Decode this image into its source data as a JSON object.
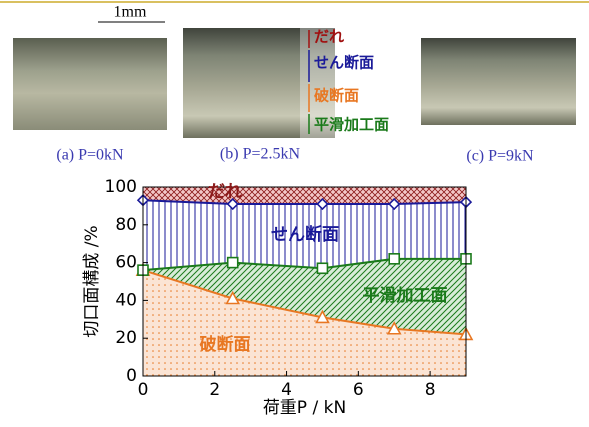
{
  "figure": {
    "scale_bar": "1mm",
    "captions": [
      "(a) P=0kN",
      "(b) P=2.5kN",
      "(c) P=9kN"
    ],
    "photo_labels": [
      {
        "text": "だれ",
        "color": "#a01010"
      },
      {
        "text": "せん断面",
        "color": "#1a1a99"
      },
      {
        "text": "破断面",
        "color": "#e87722"
      },
      {
        "text": "平滑加工面",
        "color": "#1a7a1a"
      }
    ]
  },
  "chart_data": {
    "type": "stacked-area",
    "x_label": "荷重P / kN",
    "y_label": "切口面構成 /%",
    "x": [
      0,
      2.5,
      5,
      7,
      9
    ],
    "series": [
      {
        "name": "破断面",
        "color": "#e87722",
        "marker": "triangle",
        "values": [
          56,
          41,
          31,
          25,
          22
        ]
      },
      {
        "name": "平滑加工面",
        "color": "#1a7a1a",
        "marker": "square",
        "values": [
          0,
          19,
          26,
          37,
          40
        ]
      },
      {
        "name": "せん断面",
        "color": "#1a1a99",
        "marker": "diamond",
        "values": [
          37,
          31,
          34,
          29,
          30
        ]
      },
      {
        "name": "だれ",
        "color": "#8b1a1a",
        "values": [
          7,
          9,
          9,
          9,
          8
        ]
      }
    ],
    "xlim": [
      0,
      9
    ],
    "ylim": [
      0,
      100
    ],
    "xticks": [
      0,
      2,
      4,
      6,
      8
    ],
    "yticks": [
      0,
      20,
      40,
      60,
      80,
      100
    ]
  }
}
